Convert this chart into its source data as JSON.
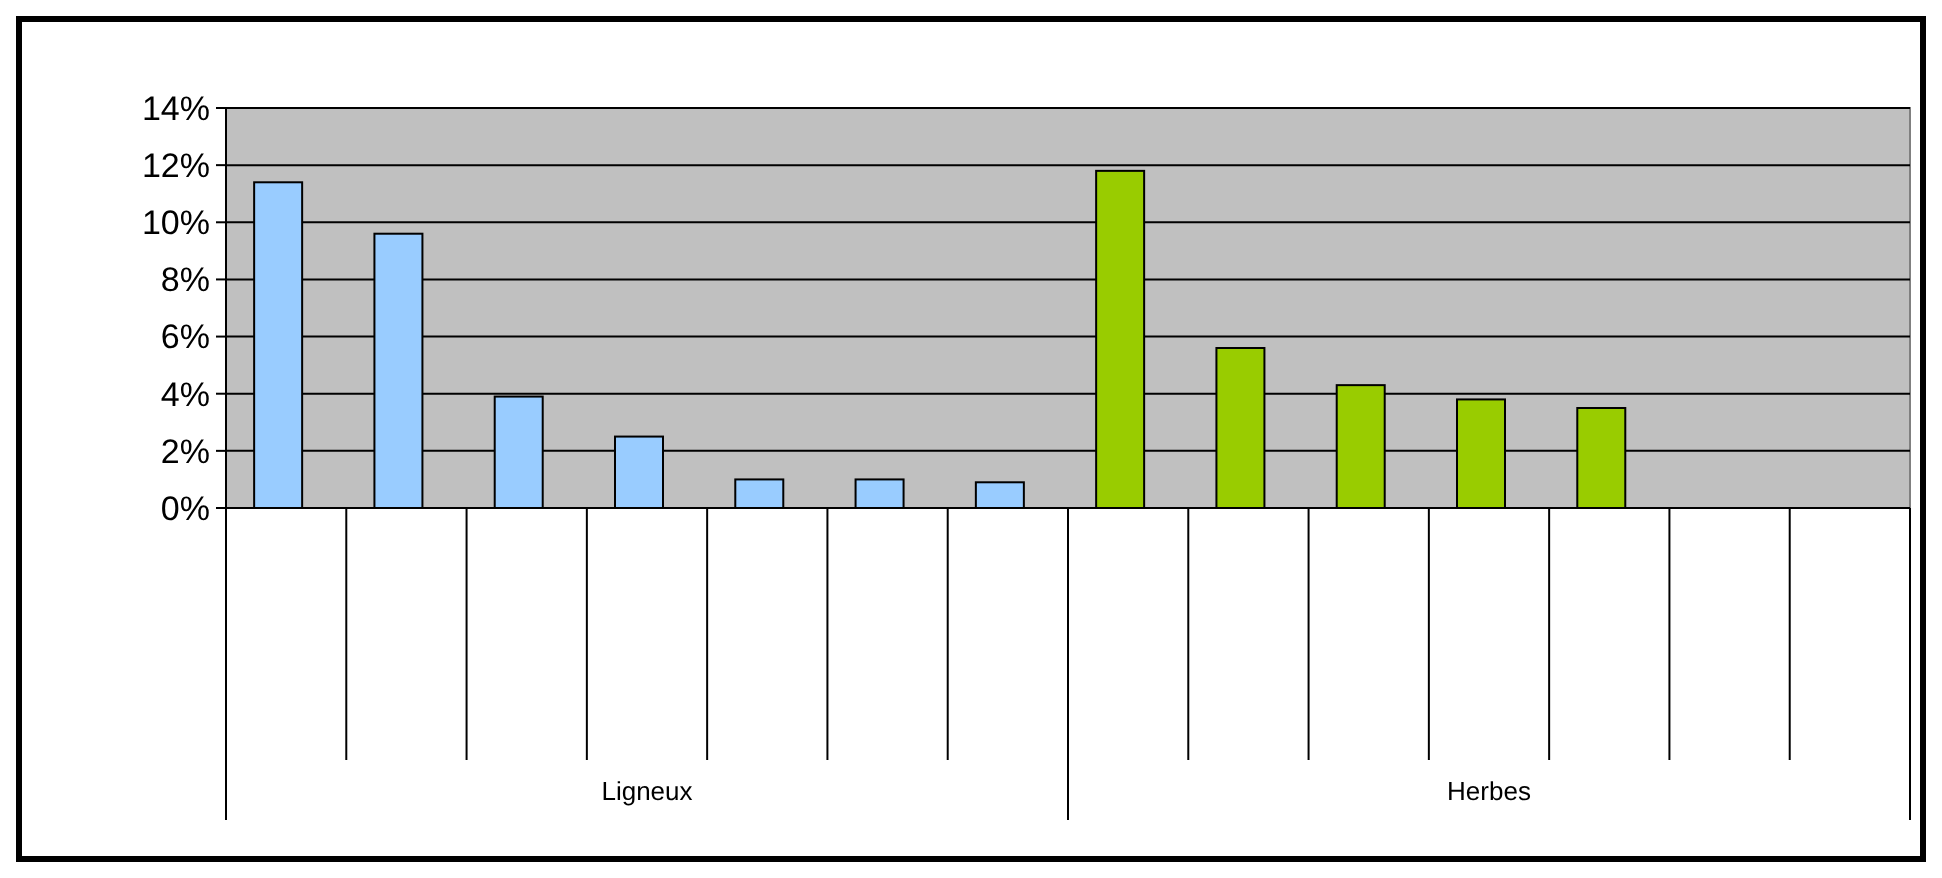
{
  "chart_data": {
    "type": "bar",
    "categories": [
      null,
      null,
      null,
      null,
      null,
      null,
      null,
      null,
      null,
      null,
      null,
      null,
      null,
      null
    ],
    "values": [
      11.4,
      9.6,
      3.9,
      2.5,
      1.0,
      1.0,
      0.9,
      11.8,
      5.6,
      4.3,
      3.8,
      3.5,
      null,
      null
    ],
    "colors": [
      "#99ccff",
      "#99ccff",
      "#99ccff",
      "#99ccff",
      "#99ccff",
      "#99ccff",
      "#99ccff",
      "#99cc00",
      "#99cc00",
      "#99cc00",
      "#99cc00",
      "#99cc00",
      null,
      null
    ],
    "ylim": [
      0,
      14
    ],
    "yticks": [
      {
        "value": 0,
        "label": "0%"
      },
      {
        "value": 2,
        "label": "2%"
      },
      {
        "value": 4,
        "label": "4%"
      },
      {
        "value": 6,
        "label": "6%"
      },
      {
        "value": 8,
        "label": "8%"
      },
      {
        "value": 10,
        "label": "10%"
      },
      {
        "value": 12,
        "label": "12%"
      },
      {
        "value": 14,
        "label": "14%"
      }
    ],
    "grid": "y",
    "annotations": [
      "Ligneux",
      "Herbes"
    ]
  }
}
